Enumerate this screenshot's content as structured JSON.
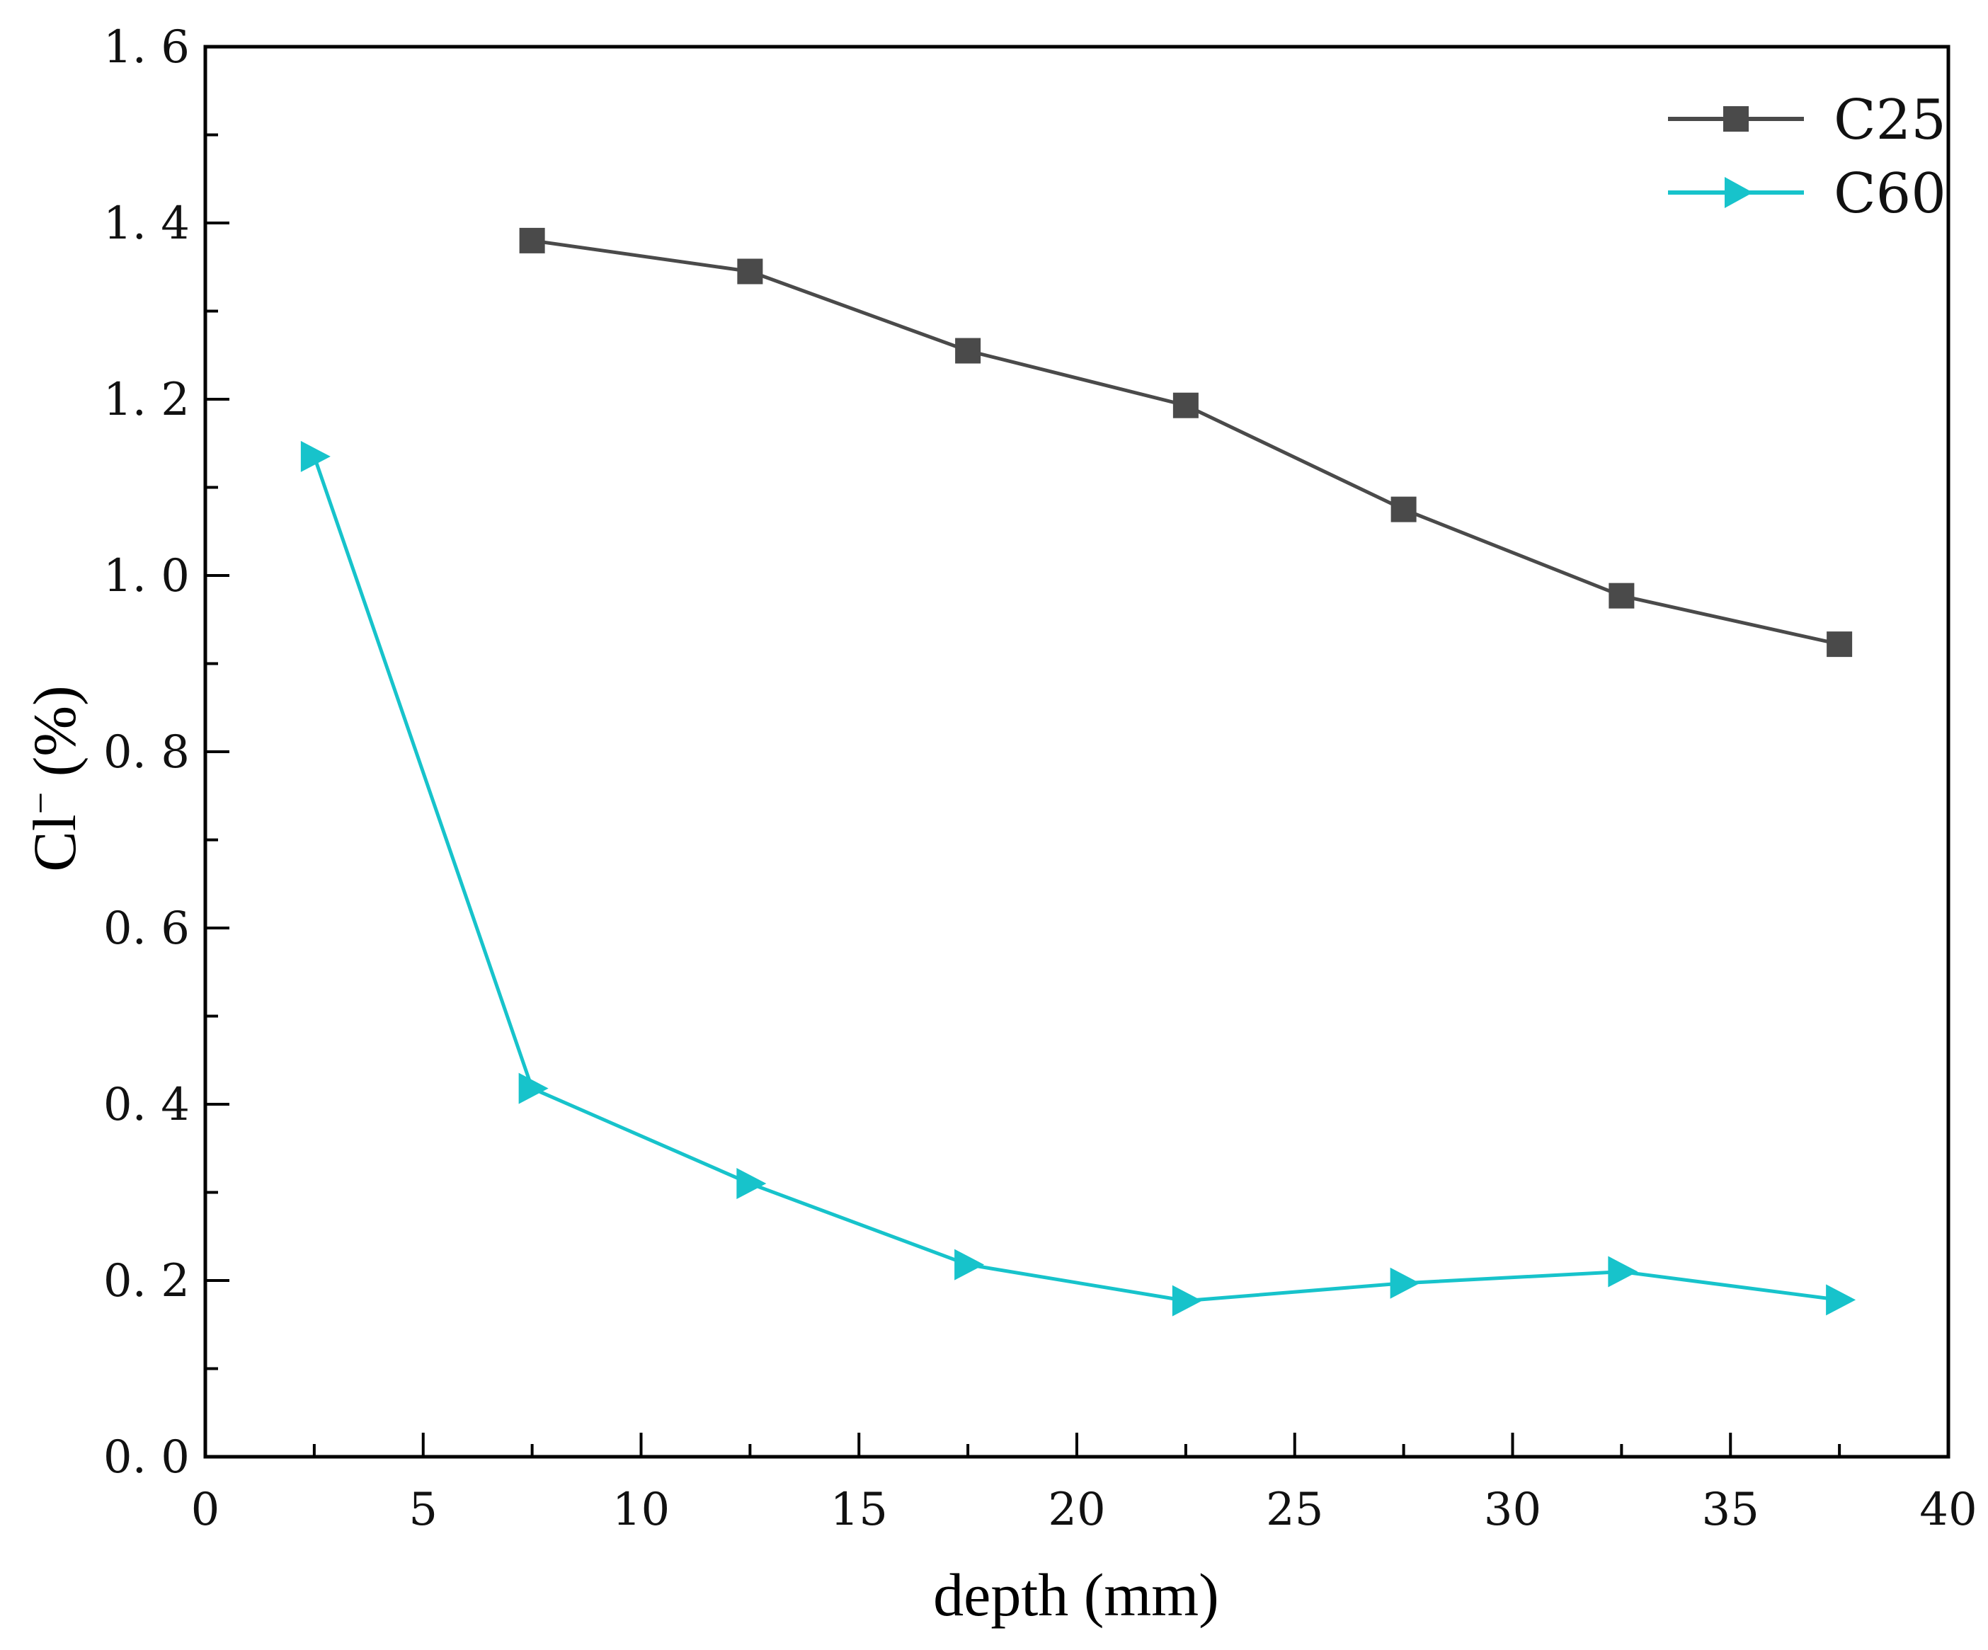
{
  "chart_data": {
    "type": "line",
    "title": "",
    "xlabel": "depth (mm)",
    "ylabel_main": "Cl",
    "ylabel_sup": "−",
    "ylabel_unit": " (%)",
    "xlim": [
      0,
      40
    ],
    "ylim": [
      0,
      1.6
    ],
    "xticks": [
      0,
      5,
      10,
      15,
      20,
      25,
      30,
      35,
      40
    ],
    "xtick_labels": [
      "0",
      "5",
      "10",
      "15",
      "20",
      "25",
      "30",
      "35",
      "40"
    ],
    "yticks": [
      0.0,
      0.2,
      0.4,
      0.6,
      0.8,
      1.0,
      1.2,
      1.4,
      1.6
    ],
    "ytick_labels": [
      "0. 0",
      "0. 2",
      "0. 4",
      "0. 6",
      "0. 8",
      "1. 0",
      "1. 2",
      "1. 4",
      "1. 6"
    ],
    "grid": false,
    "legend_position": "top-right",
    "series": [
      {
        "name": "C25",
        "color": "#4a4a4a",
        "marker": "square",
        "x": [
          7.5,
          12.5,
          17.5,
          22.5,
          27.5,
          32.5,
          37.5
        ],
        "y": [
          1.38,
          1.345,
          1.255,
          1.193,
          1.075,
          0.977,
          0.922
        ]
      },
      {
        "name": "C60",
        "color": "#17c3cb",
        "marker": "triangle-right",
        "x": [
          2.5,
          7.5,
          12.5,
          17.5,
          22.5,
          27.5,
          32.5,
          37.5
        ],
        "y": [
          1.135,
          0.418,
          0.31,
          0.218,
          0.177,
          0.197,
          0.21,
          0.178
        ]
      }
    ]
  }
}
